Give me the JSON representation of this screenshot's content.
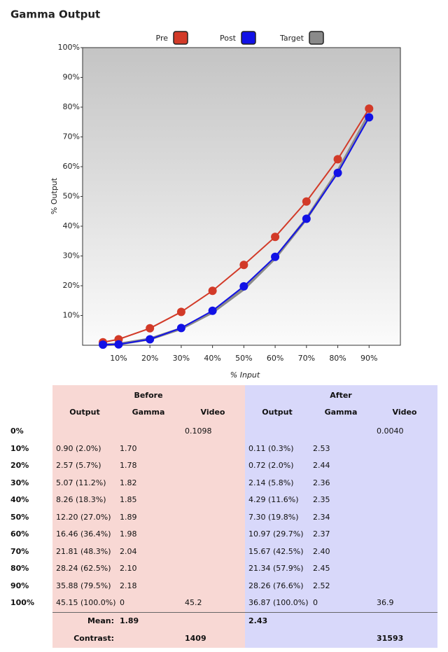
{
  "chart_data": {
    "type": "line",
    "title": "Gamma Output",
    "x_label": "% Input",
    "y_label": "% Output",
    "x": [
      5,
      10,
      20,
      30,
      40,
      50,
      60,
      70,
      80,
      90
    ],
    "series": [
      {
        "name": "Target",
        "color": "#8a8a8a",
        "markers": false,
        "values": [
          0.08,
          0.4,
          2.1,
          5.6,
          11.1,
          18.9,
          29.3,
          42.5,
          58.5,
          77.6
        ]
      },
      {
        "name": "Pre",
        "color": "#d23a28",
        "markers": true,
        "values": [
          1.0,
          2.0,
          5.7,
          11.2,
          18.3,
          27.0,
          36.4,
          48.3,
          62.5,
          79.5
        ]
      },
      {
        "name": "Post",
        "color": "#1212e6",
        "markers": true,
        "values": [
          0.2,
          0.3,
          2.0,
          5.8,
          11.6,
          19.8,
          29.7,
          42.5,
          57.9,
          76.6
        ]
      }
    ],
    "legend_order": [
      1,
      2,
      0
    ],
    "xlim": [
      -1.5,
      100
    ],
    "xticks": [
      {
        "value": 10,
        "label": "10%"
      },
      {
        "value": 20,
        "label": "20%"
      },
      {
        "value": 30,
        "label": "30%"
      },
      {
        "value": 40,
        "label": "40%"
      },
      {
        "value": 50,
        "label": "50%"
      },
      {
        "value": 60,
        "label": "60%"
      },
      {
        "value": 70,
        "label": "70%"
      },
      {
        "value": 80,
        "label": "80%"
      },
      {
        "value": 90,
        "label": "90%"
      }
    ],
    "ylim": [
      0,
      100
    ],
    "yticks": [
      {
        "value": 10,
        "label": "10%"
      },
      {
        "value": 20,
        "label": "20%"
      },
      {
        "value": 30,
        "label": "30%"
      },
      {
        "value": 40,
        "label": "40%"
      },
      {
        "value": 50,
        "label": "50%"
      },
      {
        "value": 60,
        "label": "60%"
      },
      {
        "value": 70,
        "label": "70%"
      },
      {
        "value": 80,
        "label": "80%"
      },
      {
        "value": 90,
        "label": "90%"
      },
      {
        "value": 100,
        "label": "100%"
      }
    ],
    "grid": false
  },
  "table": {
    "groups": [
      "Before",
      "After"
    ],
    "columns": [
      "Output",
      "Gamma",
      "Video",
      "Output",
      "Gamma",
      "Video"
    ],
    "rows": [
      [
        "0%",
        null,
        null,
        "0.1098",
        null,
        null,
        "0.0040"
      ],
      [
        "10%",
        "0.90 (2.0%)",
        "1.70",
        null,
        "0.11 (0.3%)",
        "2.53",
        null
      ],
      [
        "20%",
        "2.57 (5.7%)",
        "1.78",
        null,
        "0.72 (2.0%)",
        "2.44",
        null
      ],
      [
        "30%",
        "5.07 (11.2%)",
        "1.82",
        null,
        "2.14 (5.8%)",
        "2.36",
        null
      ],
      [
        "40%",
        "8.26 (18.3%)",
        "1.85",
        null,
        "4.29 (11.6%)",
        "2.35",
        null
      ],
      [
        "50%",
        "12.20 (27.0%)",
        "1.89",
        null,
        "7.30 (19.8%)",
        "2.34",
        null
      ],
      [
        "60%",
        "16.46 (36.4%)",
        "1.98",
        null,
        "10.97 (29.7%)",
        "2.37",
        null
      ],
      [
        "70%",
        "21.81 (48.3%)",
        "2.04",
        null,
        "15.67 (42.5%)",
        "2.40",
        null
      ],
      [
        "80%",
        "28.24 (62.5%)",
        "2.10",
        null,
        "21.34 (57.9%)",
        "2.45",
        null
      ],
      [
        "90%",
        "35.88 (79.5%)",
        "2.18",
        null,
        "28.26 (76.6%)",
        "2.52",
        null
      ],
      [
        "100%",
        "45.15 (100.0%)",
        "0",
        "45.2",
        "36.87 (100.0%)",
        "0",
        "36.9"
      ]
    ],
    "footer": [
      [
        "Mean:",
        null,
        "1.89",
        null,
        "2.43",
        null,
        null
      ],
      [
        "Contrast:",
        null,
        null,
        "1409",
        null,
        null,
        "31593"
      ]
    ]
  }
}
